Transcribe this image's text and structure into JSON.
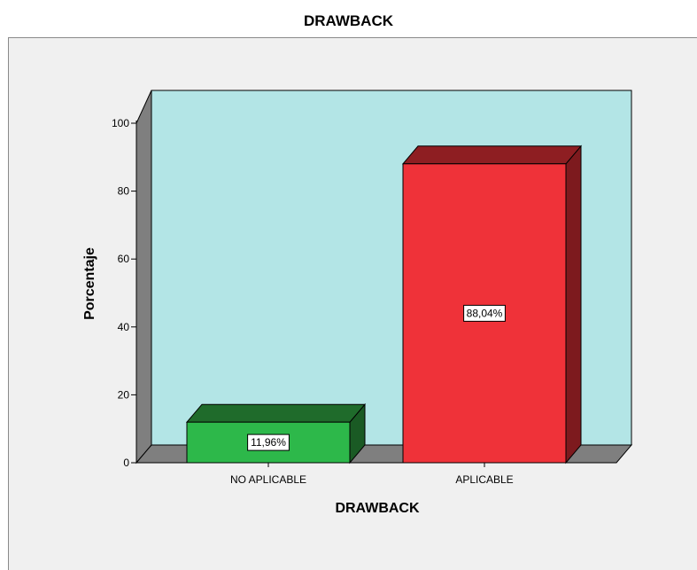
{
  "chart_data": {
    "type": "bar",
    "title": "DRAWBACK",
    "xlabel": "DRAWBACK",
    "ylabel": "Porcentaje",
    "categories": [
      "NO APLICABLE",
      "APLICABLE"
    ],
    "values": [
      11.96,
      88.04
    ],
    "value_labels": [
      "11,96%",
      "88,04%"
    ],
    "ylim": [
      0,
      100
    ],
    "yticks": [
      0,
      20,
      40,
      60,
      80,
      100
    ],
    "colors": {
      "bars": [
        "#2db84a",
        "#ef3239"
      ],
      "bar_tops": [
        "#1f6b2b",
        "#8e1e22"
      ],
      "bar_sides": [
        "#1a5a24",
        "#7d1a1e"
      ],
      "plot_background": "#b3e5e6",
      "walls": "#7f7f7f"
    },
    "grid": false,
    "legend": "none"
  }
}
